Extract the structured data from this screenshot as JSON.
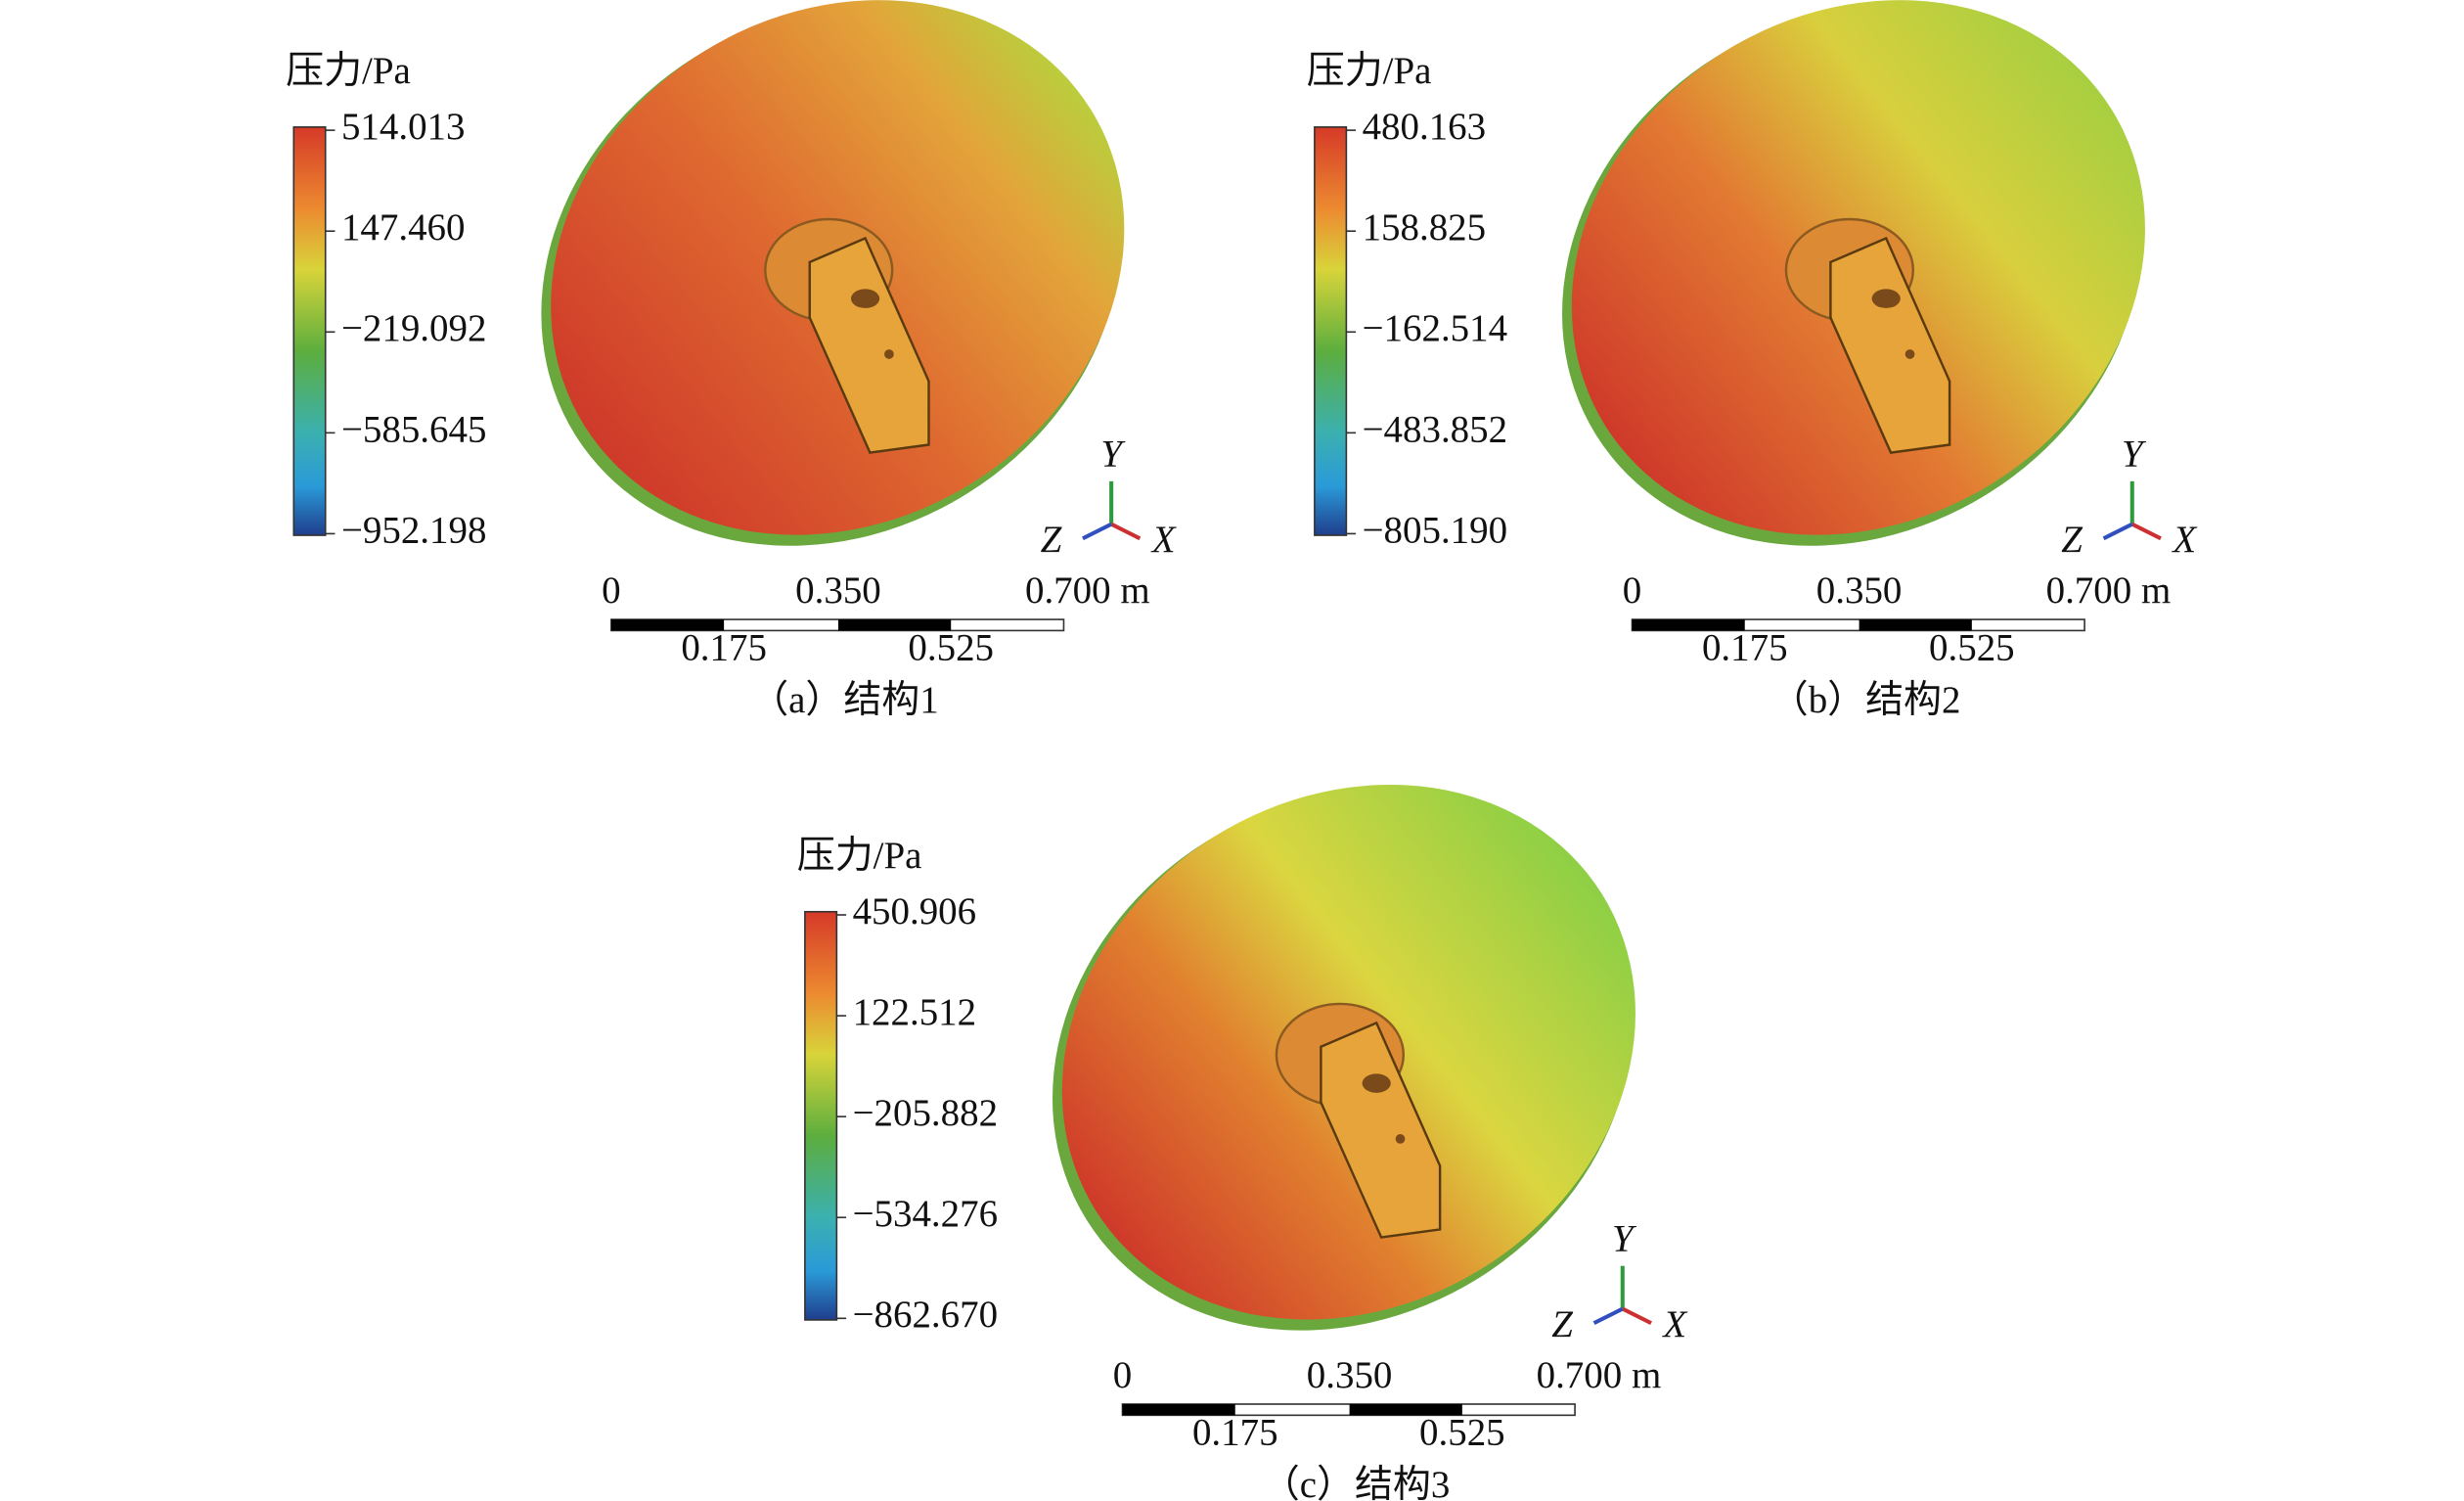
{
  "panels": [
    {
      "legend_title": "压力/Pa",
      "legend_ticks": [
        "514.013",
        "147.460",
        "−219.092",
        "−585.645",
        "−952.198"
      ],
      "axes": [
        "Y",
        "Z",
        "X"
      ],
      "scale_top": [
        "0",
        "0.350",
        "0.700 m"
      ],
      "scale_bottom": [
        "0.175",
        "0.525"
      ],
      "caption": "（a）结构1"
    },
    {
      "legend_title": "压力/Pa",
      "legend_ticks": [
        "480.163",
        "158.825",
        "−162.514",
        "−483.852",
        "−805.190"
      ],
      "axes": [
        "Y",
        "Z",
        "X"
      ],
      "scale_top": [
        "0",
        "0.350",
        "0.700 m"
      ],
      "scale_bottom": [
        "0.175",
        "0.525"
      ],
      "caption": "（b）结构2"
    },
    {
      "legend_title": "压力/Pa",
      "legend_ticks": [
        "450.906",
        "122.512",
        "−205.882",
        "−534.276",
        "−862.670"
      ],
      "axes": [
        "Y",
        "Z",
        "X"
      ],
      "scale_top": [
        "0",
        "0.350",
        "0.700 m"
      ],
      "scale_bottom": [
        "0.175",
        "0.525"
      ],
      "caption": "（c）结构3"
    }
  ]
}
